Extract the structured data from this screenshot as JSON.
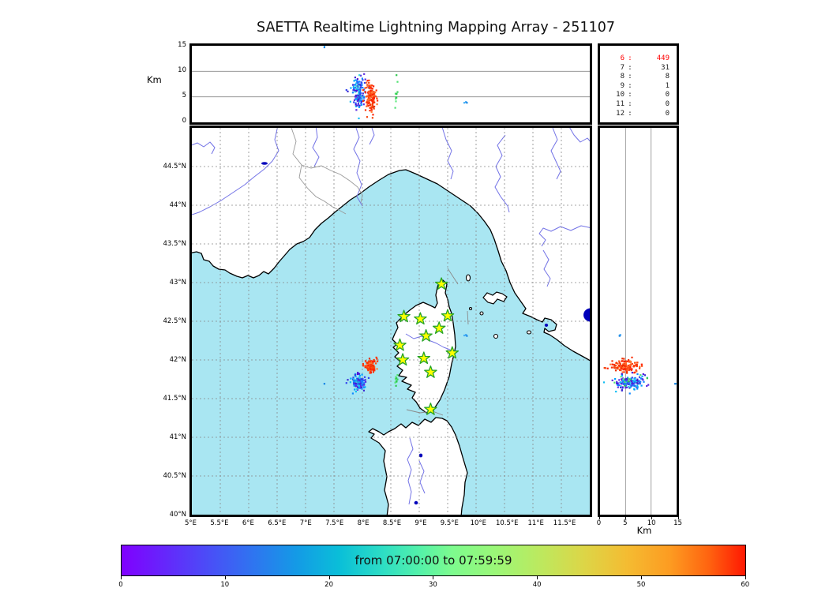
{
  "title": "SAETTA Realtime Lightning Mapping Array - 251107",
  "altitude_axis": {
    "label": "Km",
    "ticks": [
      "15",
      "10",
      "5",
      "0"
    ],
    "min": 0,
    "max": 15
  },
  "right_axis": {
    "label": "Km",
    "ticks": [
      "0",
      "5",
      "10",
      "15"
    ],
    "min": 0,
    "max": 15
  },
  "map_axes": {
    "lon_ticks": [
      "5°E",
      "5.5°E",
      "6°E",
      "6.5°E",
      "7°E",
      "7.5°E",
      "8°E",
      "8.5°E",
      "9°E",
      "9.5°E",
      "10°E",
      "10.5°E",
      "11°E",
      "11.5°E"
    ],
    "lat_ticks": [
      "44.5°N",
      "44°N",
      "43.5°N",
      "43°N",
      "42.5°N",
      "42°N",
      "41.5°N",
      "41°N",
      "40.5°N",
      "40°N"
    ],
    "lon_range": [
      5,
      12
    ],
    "lat_range": [
      40,
      45
    ]
  },
  "legend": {
    "rows": [
      {
        "hour": "6",
        "count": "449",
        "highlight": true
      },
      {
        "hour": "7",
        "count": "31",
        "highlight": false
      },
      {
        "hour": "8",
        "count": "8",
        "highlight": false
      },
      {
        "hour": "9",
        "count": "1",
        "highlight": false
      },
      {
        "hour": "10",
        "count": "0",
        "highlight": false
      },
      {
        "hour": "11",
        "count": "0",
        "highlight": false
      },
      {
        "hour": "12",
        "count": "0",
        "highlight": false
      }
    ]
  },
  "colorbar": {
    "label": "from 07:00:00 to 07:59:59",
    "ticks": [
      "0",
      "10",
      "20",
      "30",
      "40",
      "50",
      "60"
    ],
    "range": [
      0,
      60
    ]
  },
  "colors": {
    "sea": "#a9e6f2",
    "land": "#ffffff",
    "coast": "#000000",
    "river": "#7373e6",
    "country_border": "#999999",
    "grid": "#888888",
    "star_fill": "#ffff00",
    "star_edge": "#27a427",
    "lake": "#0000bb",
    "highlight": "#ff0000"
  },
  "chart_data": {
    "type": "scatter",
    "title": "SAETTA Realtime Lightning Mapping Array - 251107",
    "date_label": "251107",
    "time_window": {
      "from": "07:00:00",
      "to": "07:59:59"
    },
    "colorbar_unit_minutes": [
      0,
      60
    ],
    "panels": {
      "top": {
        "x": "longitude 5-12 E",
        "y": "altitude 0-15 km",
        "grid_alt_km": [
          5,
          10
        ]
      },
      "map": {
        "x": "longitude 5-12 E",
        "y": "latitude 40-45 N",
        "grid_step_deg": 0.5
      },
      "right": {
        "x": "altitude 0-15 km",
        "y": "latitude 40-45 N",
        "grid_alt_km": [
          5,
          10
        ]
      }
    },
    "hourly_counts": [
      {
        "hour": 6,
        "count": 449,
        "active": true
      },
      {
        "hour": 7,
        "count": 31,
        "active": false
      },
      {
        "hour": 8,
        "count": 8,
        "active": false
      },
      {
        "hour": 9,
        "count": 1,
        "active": false
      },
      {
        "hour": 10,
        "count": 0,
        "active": false
      },
      {
        "hour": 11,
        "count": 0,
        "active": false
      },
      {
        "hour": 12,
        "count": 0,
        "active": false
      }
    ],
    "stations_lonlat": [
      [
        9.39,
        42.98
      ],
      [
        8.73,
        42.56
      ],
      [
        9.02,
        42.53
      ],
      [
        9.5,
        42.57
      ],
      [
        9.35,
        42.41
      ],
      [
        9.12,
        42.31
      ],
      [
        8.66,
        42.19
      ],
      [
        9.58,
        42.09
      ],
      [
        8.71,
        42.0
      ],
      [
        9.08,
        42.02
      ],
      [
        9.2,
        41.84
      ],
      [
        9.2,
        41.36
      ]
    ],
    "clusters": [
      {
        "name": "storm-cell-early",
        "lon": 7.93,
        "lat": 41.705,
        "alt_km": 5.9,
        "lon_sd": 0.062,
        "lat_sd": 0.048,
        "alt_sd": 1.45,
        "n": 150,
        "palette": "cool"
      },
      {
        "name": "storm-cell-late",
        "lon": 8.145,
        "lat": 41.925,
        "alt_km": 4.9,
        "lon_sd": 0.05,
        "lat_sd": 0.038,
        "alt_sd": 1.5,
        "n": 125,
        "palette": "warm"
      },
      {
        "name": "minor-cell-green",
        "lon": 8.595,
        "lat": 41.75,
        "alt_km": 5.0,
        "lon_sd": 0.018,
        "lat_sd": 0.06,
        "alt_sd": 1.8,
        "n": 11,
        "palette": "green"
      },
      {
        "name": "spot-east",
        "lon": 9.82,
        "lat": 42.33,
        "alt_km": 4.1,
        "lon_sd": 0.018,
        "lat_sd": 0.015,
        "alt_sd": 0.3,
        "n": 3,
        "palette": "cool2"
      },
      {
        "name": "stray-high",
        "lon": 7.33,
        "lat": 41.69,
        "alt_km": 14.8,
        "lon_sd": 0.005,
        "lat_sd": 0.005,
        "alt_sd": 0.12,
        "n": 2,
        "palette": "cool2"
      }
    ],
    "palettes": {
      "cool": [
        "#4a0fd8",
        "#5a2ae0",
        "#3344ee",
        "#2266ff",
        "#1188ff",
        "#00a2ff",
        "#12bdf2",
        "#2dd3e0",
        "#3b2bd4"
      ],
      "warm": [
        "#ff1e00",
        "#f93306",
        "#ff4d14",
        "#e82e00",
        "#ff6022",
        "#f4440c",
        "#ff7a33"
      ],
      "green": [
        "#3ed45d",
        "#52e273",
        "#2fc84e",
        "#63ea82"
      ],
      "cool2": [
        "#2196f3",
        "#42aef5",
        "#1e88e5"
      ]
    }
  }
}
